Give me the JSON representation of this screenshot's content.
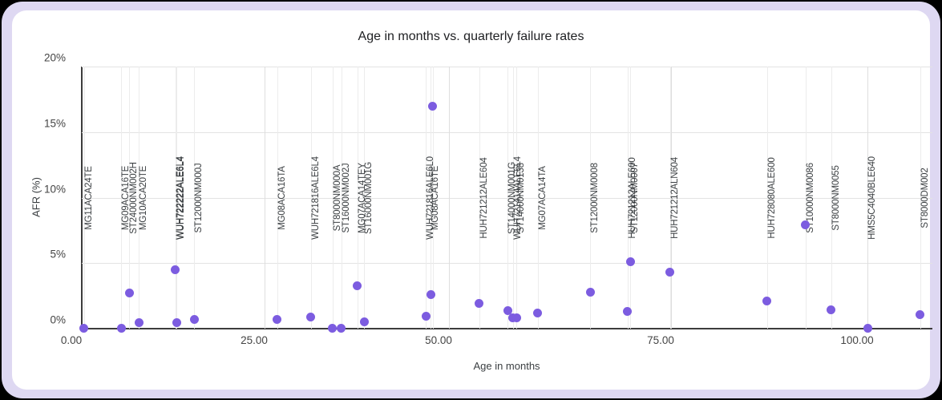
{
  "frame": {
    "outer_background": "#000000",
    "border_background": "#ded8f2",
    "card_background": "#ffffff"
  },
  "chart_data": {
    "type": "scatter",
    "title": "Age in months vs. quarterly failure rates",
    "xlabel": "Age in months",
    "ylabel": "AFR (%)",
    "xlim": [
      0,
      108.5
    ],
    "ylim": [
      0,
      20
    ],
    "grid": true,
    "legend": "none",
    "point_color": "#7c5ce0",
    "gridline_color": "#e3e3e3",
    "axis_color": "#3c3c3c",
    "x_ticks": [
      {
        "value": 0,
        "label": "0.00"
      },
      {
        "value": 25,
        "label": "25.00"
      },
      {
        "value": 50,
        "label": "50.00"
      },
      {
        "value": 75,
        "label": "75.00"
      },
      {
        "value": 100,
        "label": "100.00"
      }
    ],
    "y_ticks": [
      {
        "value": 0,
        "label": "0%"
      },
      {
        "value": 5,
        "label": "5%"
      },
      {
        "value": 10,
        "label": "10%"
      },
      {
        "value": 15,
        "label": "15%"
      },
      {
        "value": 20,
        "label": "20%"
      }
    ],
    "points": [
      {
        "model": "MG11ACA24TE",
        "age_months": 0.3,
        "afr_pct": 0.05
      },
      {
        "model": "MG09ACA16TE",
        "age_months": 5.4,
        "afr_pct": 0.02
      },
      {
        "model": "ST24000NM002H",
        "age_months": 6.5,
        "afr_pct": 2.7
      },
      {
        "model": "MG10ACA20TE",
        "age_months": 7.8,
        "afr_pct": 0.47
      },
      {
        "model": "WUH722222ALE6L4",
        "age_months": 12.8,
        "afr_pct": 4.5
      },
      {
        "model": "WUH722222ALE6L4",
        "age_months": 12.95,
        "afr_pct": 0.43
      },
      {
        "model": "ST12000NM000J",
        "age_months": 15.4,
        "afr_pct": 0.72
      },
      {
        "model": "MG08ACA16TA",
        "age_months": 26.7,
        "afr_pct": 0.72
      },
      {
        "model": "WUH721816ALE6L4",
        "age_months": 31.3,
        "afr_pct": 0.88
      },
      {
        "model": "ST8000NM000A",
        "age_months": 34.2,
        "afr_pct": 0.03
      },
      {
        "model": "ST16000NM002J",
        "age_months": 35.4,
        "afr_pct": 0.03
      },
      {
        "model": "MG07ACA14TEY",
        "age_months": 37.6,
        "afr_pct": 3.3
      },
      {
        "model": "ST16000NM001G",
        "age_months": 38.5,
        "afr_pct": 0.55
      },
      {
        "model": "WUH721816ALE6L0",
        "age_months": 46.9,
        "afr_pct": 0.94
      },
      {
        "model": "MG08ACA16TE",
        "age_months": 47.5,
        "afr_pct": 2.6
      },
      {
        "model": "",
        "age_months": 47.8,
        "afr_pct": 17.0
      },
      {
        "model": "HUH721212ALE604",
        "age_months": 53.4,
        "afr_pct": 1.9
      },
      {
        "model": "ST14000NM001G",
        "age_months": 56.6,
        "afr_pct": 1.35
      },
      {
        "model": "WUH721414ALE6L4",
        "age_months": 57.2,
        "afr_pct": 0.84
      },
      {
        "model": "ST14000NM0138",
        "age_months": 57.6,
        "afr_pct": 0.8
      },
      {
        "model": "MG07ACA14TA",
        "age_months": 60.0,
        "afr_pct": 1.2
      },
      {
        "model": "ST12000NM0008",
        "age_months": 65.9,
        "afr_pct": 2.8
      },
      {
        "model": "HUH721212ALE600",
        "age_months": 70.1,
        "afr_pct": 1.3
      },
      {
        "model": "ST12000NM0007",
        "age_months": 70.4,
        "afr_pct": 5.1
      },
      {
        "model": "HUH721212ALN604",
        "age_months": 74.9,
        "afr_pct": 4.3
      },
      {
        "model": "HUH728080ALE600",
        "age_months": 87.2,
        "afr_pct": 2.1
      },
      {
        "model": "ST10000NM0086",
        "age_months": 92.1,
        "afr_pct": 7.9
      },
      {
        "model": "ST8000NM0055",
        "age_months": 95.4,
        "afr_pct": 1.45
      },
      {
        "model": "HMS5C4040BLE640",
        "age_months": 100.0,
        "afr_pct": 0.03
      },
      {
        "model": "ST8000DM002",
        "age_months": 106.7,
        "afr_pct": 1.05
      }
    ]
  }
}
